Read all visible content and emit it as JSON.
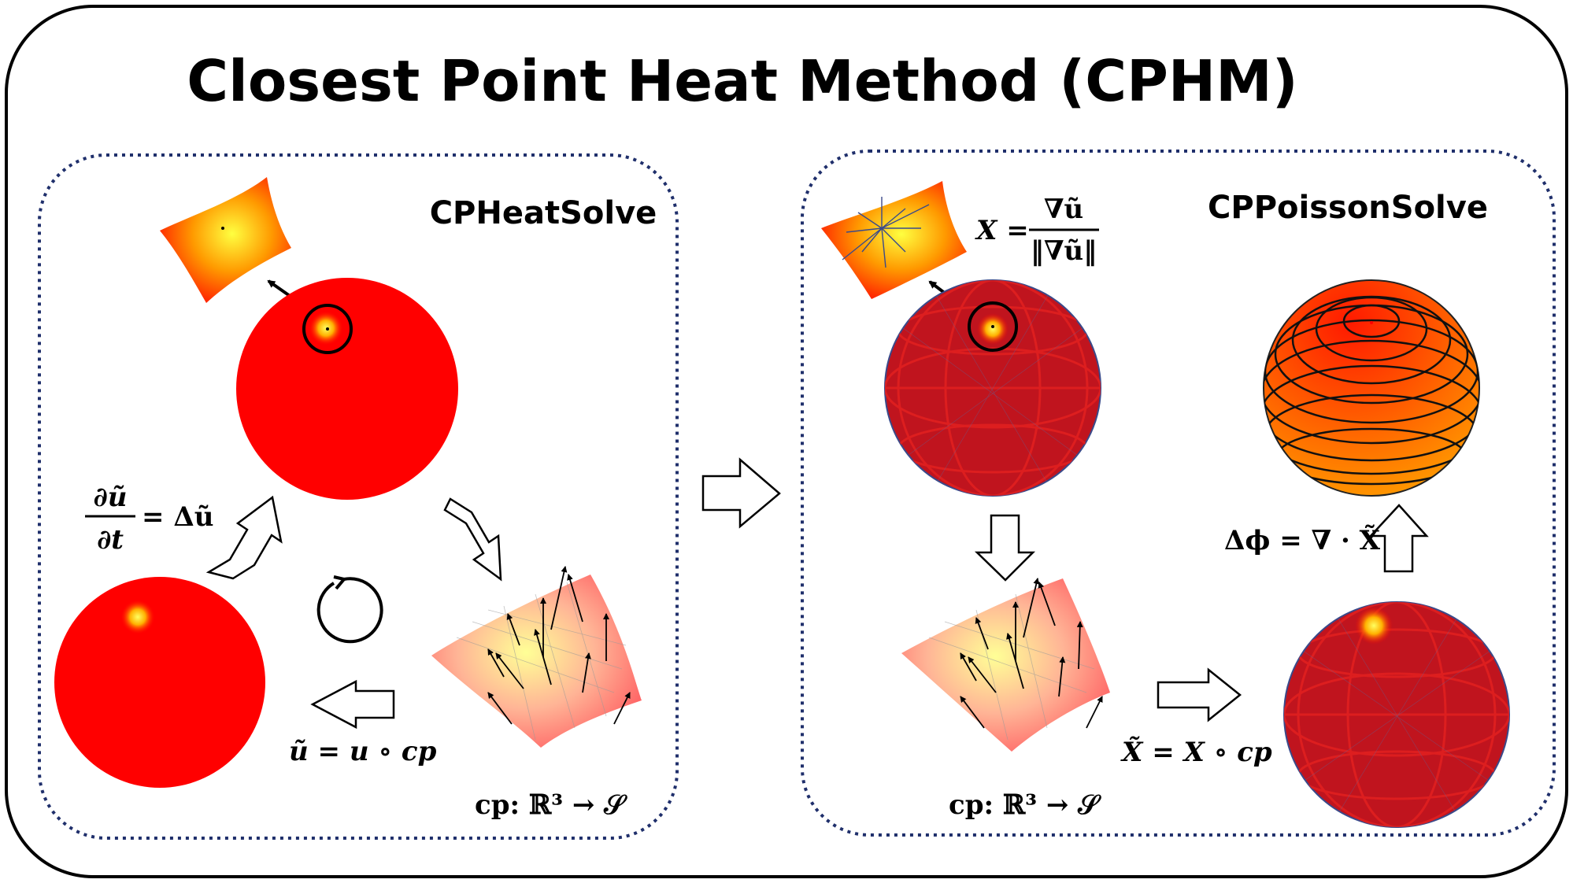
{
  "title": "Closest Point Heat Method (CPHM)",
  "panels": {
    "heat": {
      "title": "CPHeatSolve"
    },
    "poisson": {
      "title": "CPPoissonSolve"
    }
  },
  "equations": {
    "heat_lhs_num": "∂ũ",
    "heat_lhs_den": "∂t",
    "heat_rhs": "= Δũ",
    "extension": "ũ = u ∘ cp",
    "cp_map_left": "cp: ℝ³ → 𝒮",
    "gradient_lhs": "X =",
    "gradient_num": "∇ũ",
    "gradient_den": "‖∇ũ‖",
    "cp_map_right": "cp: ℝ³ → 𝒮",
    "vector_extension": "X̃ = X ∘ cp",
    "poisson": "Δϕ = ∇ · X̃"
  },
  "colors": {
    "sphere_red": "#ff0000",
    "heat_yellow": "#ffff40",
    "dotted_border": "#1f2f6b",
    "dark_sphere": "#c0141e",
    "orange": "#ff8a00"
  },
  "icons": {
    "cycle": "cycle-arrow-icon",
    "flow": "hollow-arrow-icon"
  }
}
